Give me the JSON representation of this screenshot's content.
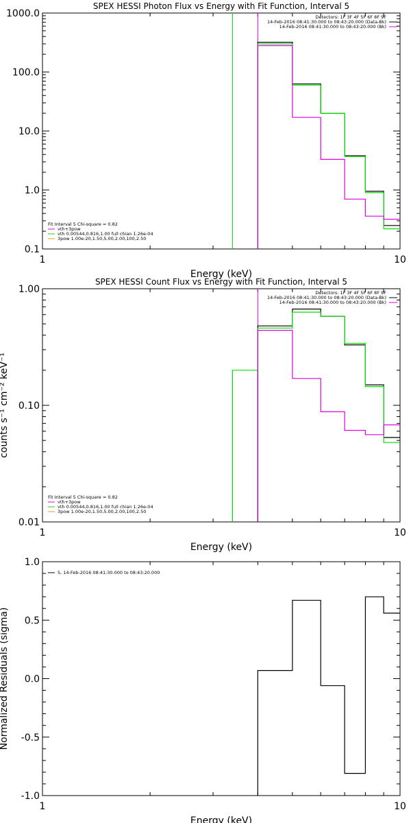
{
  "chart_data": [
    {
      "type": "line",
      "title": "SPEX HESSI Photon Flux vs Energy with Fit Function, Interval 5",
      "xlabel": "Energy (keV)",
      "ylabel": "",
      "xscale": "log",
      "yscale": "log",
      "xlim": [
        1,
        10
      ],
      "ylim": [
        0.1,
        1000
      ],
      "xticklabels": [
        "1",
        "10"
      ],
      "yticklabels": [
        "1000.0",
        "100.0",
        "10.0",
        "1.0",
        "0.1"
      ],
      "info_box": [
        "Detectors: 1F 3F 4F 5F 6F 8F 9F",
        "14-Feb-2016 08:41:30.000 to 08:43:20.000 (Data-Bk)",
        "14-Feb-2016 08:41:30.000 to 08:43:20.000 (Bk)"
      ],
      "legend": {
        "position": "bottom-left",
        "lines": [
          "Fit Interval 5   Chi-square = 0.82",
          "vth+3pow",
          "vth 0.00544,0.816,1.00  full chian 1.26e-04",
          "3pow 1.00e-20,1.50,5.00,2.00,100,2.50"
        ]
      },
      "edges": [
        4,
        5,
        6,
        7,
        8,
        9,
        10
      ],
      "series": [
        {
          "name": "Data-Bk",
          "color": "#000000",
          "values": [
            320,
            63,
            20,
            3.8,
            0.95,
            0.25
          ]
        },
        {
          "name": "vth+3pow",
          "color": "#00e000",
          "values": [
            300,
            60,
            20,
            3.7,
            0.9,
            0.22
          ]
        },
        {
          "name": "Bk",
          "color": "#e000e0",
          "values": [
            280,
            17,
            3.3,
            0.7,
            0.36,
            0.32
          ]
        }
      ],
      "markers": [
        {
          "x": 3.4,
          "color": "#00e000"
        },
        {
          "x": 4,
          "color": "#e000e0"
        }
      ]
    },
    {
      "type": "line",
      "title": "SPEX HESSI Count Flux vs Energy with Fit Function, Interval 5",
      "xlabel": "Energy (keV)",
      "ylabel": "counts s⁻¹ cm⁻² keV⁻¹",
      "xscale": "log",
      "yscale": "log",
      "xlim": [
        1,
        10
      ],
      "ylim": [
        0.01,
        1
      ],
      "xticklabels": [
        "1",
        "10"
      ],
      "yticklabels": [
        "1.00",
        "0.10",
        "0.01"
      ],
      "info_box": [
        "Detectors: 1F 3F 4F 5F 6F 8F 9F",
        "14-Feb-2016 08:41:30.000 to 08:43:20.000 (Data-Bk)",
        "14-Feb-2016 08:41:30.000 to 08:43:20.000 (Bk)"
      ],
      "legend": {
        "position": "bottom-left",
        "lines": [
          "Fit Interval 5   Chi-square = 0.82",
          "vth+3pow",
          "vth 0.00544,0.816,1.00  full chian 1.26e-04",
          "3pow 1.00e-20,1.50,5.00,2.00,100,2.50"
        ]
      },
      "edges": [
        3.4,
        4,
        5,
        6,
        7,
        8,
        9,
        10
      ],
      "series": [
        {
          "name": "Data-Bk",
          "color": "#000000",
          "values": [
            null,
            0.48,
            0.67,
            0.58,
            0.33,
            0.15,
            0.053
          ]
        },
        {
          "name": "vth+3pow",
          "color": "#00e000",
          "values": [
            0.2,
            0.46,
            0.63,
            0.58,
            0.34,
            0.145,
            0.048
          ]
        },
        {
          "name": "Bk",
          "color": "#e000e0",
          "values": [
            null,
            0.44,
            0.17,
            0.088,
            0.061,
            0.056,
            0.068
          ]
        }
      ],
      "markers": [
        {
          "x": 4,
          "color": "#e000e0"
        }
      ]
    },
    {
      "type": "line",
      "title": "",
      "xlabel": "Energy (keV)",
      "ylabel": "Normalized Residuals (sigma)",
      "xscale": "log",
      "yscale": "linear",
      "xlim": [
        1,
        10
      ],
      "ylim": [
        -1.0,
        1.0
      ],
      "xticklabels": [
        "1",
        "10"
      ],
      "yticklabels": [
        "1.0",
        "0.5",
        "0.0",
        "-0.5",
        "-1.0"
      ],
      "legend": {
        "position": "top-left",
        "lines": [
          "5, 14-Feb-2016 08:41:30.000 to 08:43:20.000"
        ]
      },
      "edges": [
        4,
        5,
        6,
        7,
        8,
        9,
        10
      ],
      "series": [
        {
          "name": "5, 14-Feb-2016 08:41:30.000 to 08:43:20.000",
          "color": "#000000",
          "values": [
            0.07,
            0.67,
            -0.06,
            -0.81,
            0.7,
            0.56
          ]
        }
      ]
    }
  ]
}
